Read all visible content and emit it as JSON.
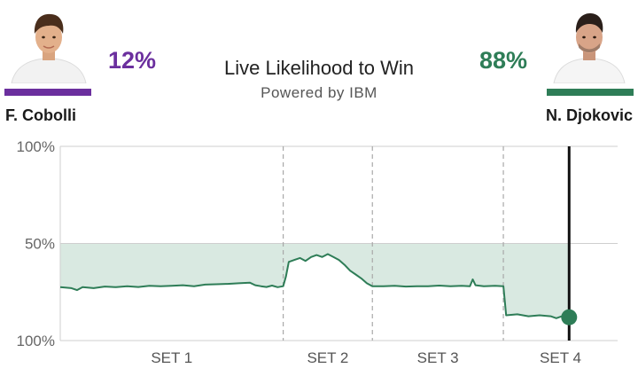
{
  "header": {
    "title": "Live Likelihood to Win",
    "subtitle": "Powered by IBM"
  },
  "players": {
    "left": {
      "name": "F. Cobolli",
      "pct": "12%",
      "color": "#6b2f9e"
    },
    "right": {
      "name": "N. Djokovic",
      "pct": "88%",
      "color": "#2e7d57"
    }
  },
  "colors": {
    "line": "#2e7d57",
    "fill": "#d9e9e1",
    "grid": "#cfcfcf",
    "divider": "#a8a8a8",
    "marker": "#111111",
    "dot": "#2e7d57"
  },
  "chart_data": {
    "type": "line",
    "title": "Live Likelihood to Win",
    "ylabel": "",
    "xlabel": "",
    "y_ticks": [
      "100%",
      "50%",
      "100%"
    ],
    "y_tick_values": [
      100,
      50,
      0
    ],
    "ylim": [
      0,
      100
    ],
    "xlim": [
      0,
      100
    ],
    "sets": [
      {
        "label": "SET 1",
        "start": 0,
        "end": 40.0
      },
      {
        "label": "SET 2",
        "start": 40.0,
        "end": 56.0
      },
      {
        "label": "SET 3",
        "start": 56.0,
        "end": 79.5
      },
      {
        "label": "SET 4",
        "start": 79.5,
        "end": 100
      }
    ],
    "current_x": 91.3,
    "series": [
      {
        "values": [
          [
            0,
            27.5
          ],
          [
            2,
            27.0
          ],
          [
            3,
            26.0
          ],
          [
            4,
            27.5
          ],
          [
            6,
            27.0
          ],
          [
            8,
            27.8
          ],
          [
            10,
            27.5
          ],
          [
            12,
            28.0
          ],
          [
            14,
            27.6
          ],
          [
            16,
            28.2
          ],
          [
            18,
            28.0
          ],
          [
            20,
            28.2
          ],
          [
            22,
            28.5
          ],
          [
            24,
            28.0
          ],
          [
            26,
            28.8
          ],
          [
            28,
            29.0
          ],
          [
            30,
            29.2
          ],
          [
            32,
            29.5
          ],
          [
            34,
            29.8
          ],
          [
            35,
            28.5
          ],
          [
            36,
            28.0
          ],
          [
            37,
            27.6
          ],
          [
            38,
            28.3
          ],
          [
            39,
            27.5
          ],
          [
            40.0,
            28.0
          ],
          [
            40.5,
            33.0
          ],
          [
            41,
            40.5
          ],
          [
            42,
            41.5
          ],
          [
            43,
            42.5
          ],
          [
            44,
            41.0
          ],
          [
            45,
            43.0
          ],
          [
            46,
            44.0
          ],
          [
            47,
            43.0
          ],
          [
            48,
            44.5
          ],
          [
            49,
            43.0
          ],
          [
            50,
            41.5
          ],
          [
            51,
            39.0
          ],
          [
            52,
            36.0
          ],
          [
            53,
            34.0
          ],
          [
            54,
            32.0
          ],
          [
            55,
            29.5
          ],
          [
            56,
            28.0
          ],
          [
            58,
            28.0
          ],
          [
            60,
            28.2
          ],
          [
            62,
            27.8
          ],
          [
            64,
            28.0
          ],
          [
            66,
            28.0
          ],
          [
            68,
            28.3
          ],
          [
            70,
            28.0
          ],
          [
            72,
            28.2
          ],
          [
            73.5,
            28.0
          ],
          [
            74,
            31.5
          ],
          [
            74.5,
            28.5
          ],
          [
            76,
            28.0
          ],
          [
            78,
            28.2
          ],
          [
            79.5,
            28.0
          ],
          [
            80,
            13.0
          ],
          [
            82,
            13.5
          ],
          [
            84,
            12.5
          ],
          [
            86,
            13.0
          ],
          [
            88,
            12.5
          ],
          [
            89,
            11.5
          ],
          [
            90,
            12.5
          ],
          [
            91.3,
            12.0
          ]
        ]
      }
    ]
  }
}
